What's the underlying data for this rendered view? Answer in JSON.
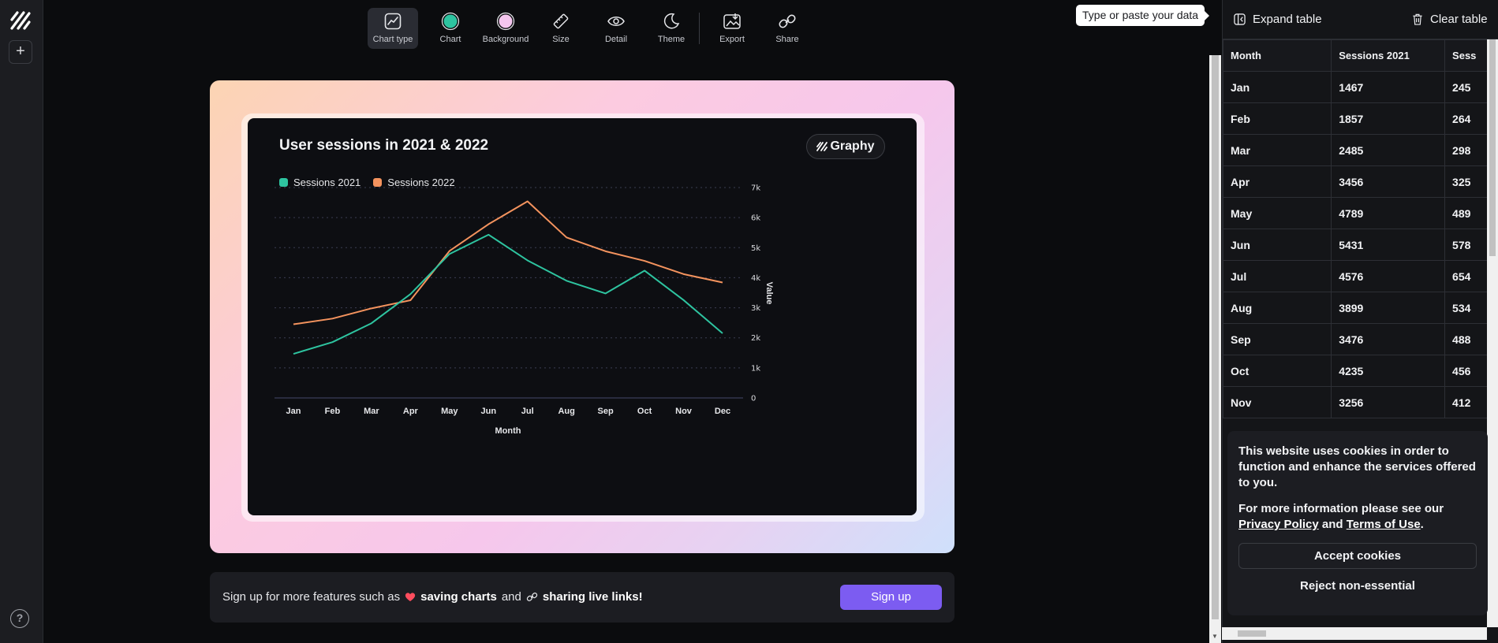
{
  "toolbar": {
    "items": [
      {
        "label": "Chart type",
        "icon": "chart-type-icon"
      },
      {
        "label": "Chart",
        "icon": "chart-color-icon"
      },
      {
        "label": "Background",
        "icon": "background-color-icon"
      },
      {
        "label": "Size",
        "icon": "ruler-icon"
      },
      {
        "label": "Detail",
        "icon": "eye-icon"
      },
      {
        "label": "Theme",
        "icon": "moon-icon"
      },
      {
        "label": "Export",
        "icon": "export-icon"
      },
      {
        "label": "Share",
        "icon": "link-icon"
      }
    ]
  },
  "colors": {
    "series_2021": "#2ec4a0",
    "series_2022": "#f4935e",
    "chart_swatch": "#2ec4a0",
    "background_swatch": "#f4c6ee",
    "accent": "#7c5cf1"
  },
  "chart": {
    "brand": "Graphy"
  },
  "chart_data": {
    "type": "line",
    "title": "User sessions in 2021 & 2022",
    "categories": [
      "Jan",
      "Feb",
      "Mar",
      "Apr",
      "May",
      "Jun",
      "Jul",
      "Aug",
      "Sep",
      "Oct",
      "Nov",
      "Dec"
    ],
    "series": [
      {
        "name": "Sessions 2021",
        "values": [
          1467,
          1857,
          2485,
          3456,
          4789,
          5431,
          4576,
          3899,
          3476,
          4235,
          3256,
          2150
        ]
      },
      {
        "name": "Sessions 2022",
        "values": [
          2450,
          2640,
          2980,
          3250,
          4890,
          5780,
          6540,
          5340,
          4880,
          4560,
          4120,
          3840
        ]
      }
    ],
    "xlabel": "Month",
    "ylabel": "Value",
    "ylim": [
      0,
      7000
    ],
    "yticks": [
      "0",
      "1k",
      "2k",
      "3k",
      "4k",
      "5k",
      "6k",
      "7k"
    ],
    "grid": true,
    "legend": "top-left"
  },
  "signup": {
    "prefix": "Sign up for more features such as",
    "feature1": "saving charts",
    "and": "and",
    "feature2": "sharing live links!",
    "button": "Sign up"
  },
  "panel": {
    "tooltip": "Type or paste your data",
    "expand_label": "Expand table",
    "clear_label": "Clear table",
    "headers": [
      "Month",
      "Sessions 2021",
      "Sess"
    ],
    "rows": [
      [
        "Jan",
        "1467",
        "245"
      ],
      [
        "Feb",
        "1857",
        "264"
      ],
      [
        "Mar",
        "2485",
        "298"
      ],
      [
        "Apr",
        "3456",
        "325"
      ],
      [
        "May",
        "4789",
        "489"
      ],
      [
        "Jun",
        "5431",
        "578"
      ],
      [
        "Jul",
        "4576",
        "654"
      ],
      [
        "Aug",
        "3899",
        "534"
      ],
      [
        "Sep",
        "3476",
        "488"
      ],
      [
        "Oct",
        "4235",
        "456"
      ],
      [
        "Nov",
        "3256",
        "412"
      ]
    ]
  },
  "cookie": {
    "text1": "This website uses cookies in order to function and enhance the services offered to you.",
    "text2_prefix": "For more information please see our",
    "privacy": "Privacy Policy",
    "and": "and",
    "terms": "Terms of Use",
    "accept": "Accept cookies",
    "reject": "Reject non-essential"
  },
  "rail": {
    "add": "+",
    "help": "?"
  }
}
